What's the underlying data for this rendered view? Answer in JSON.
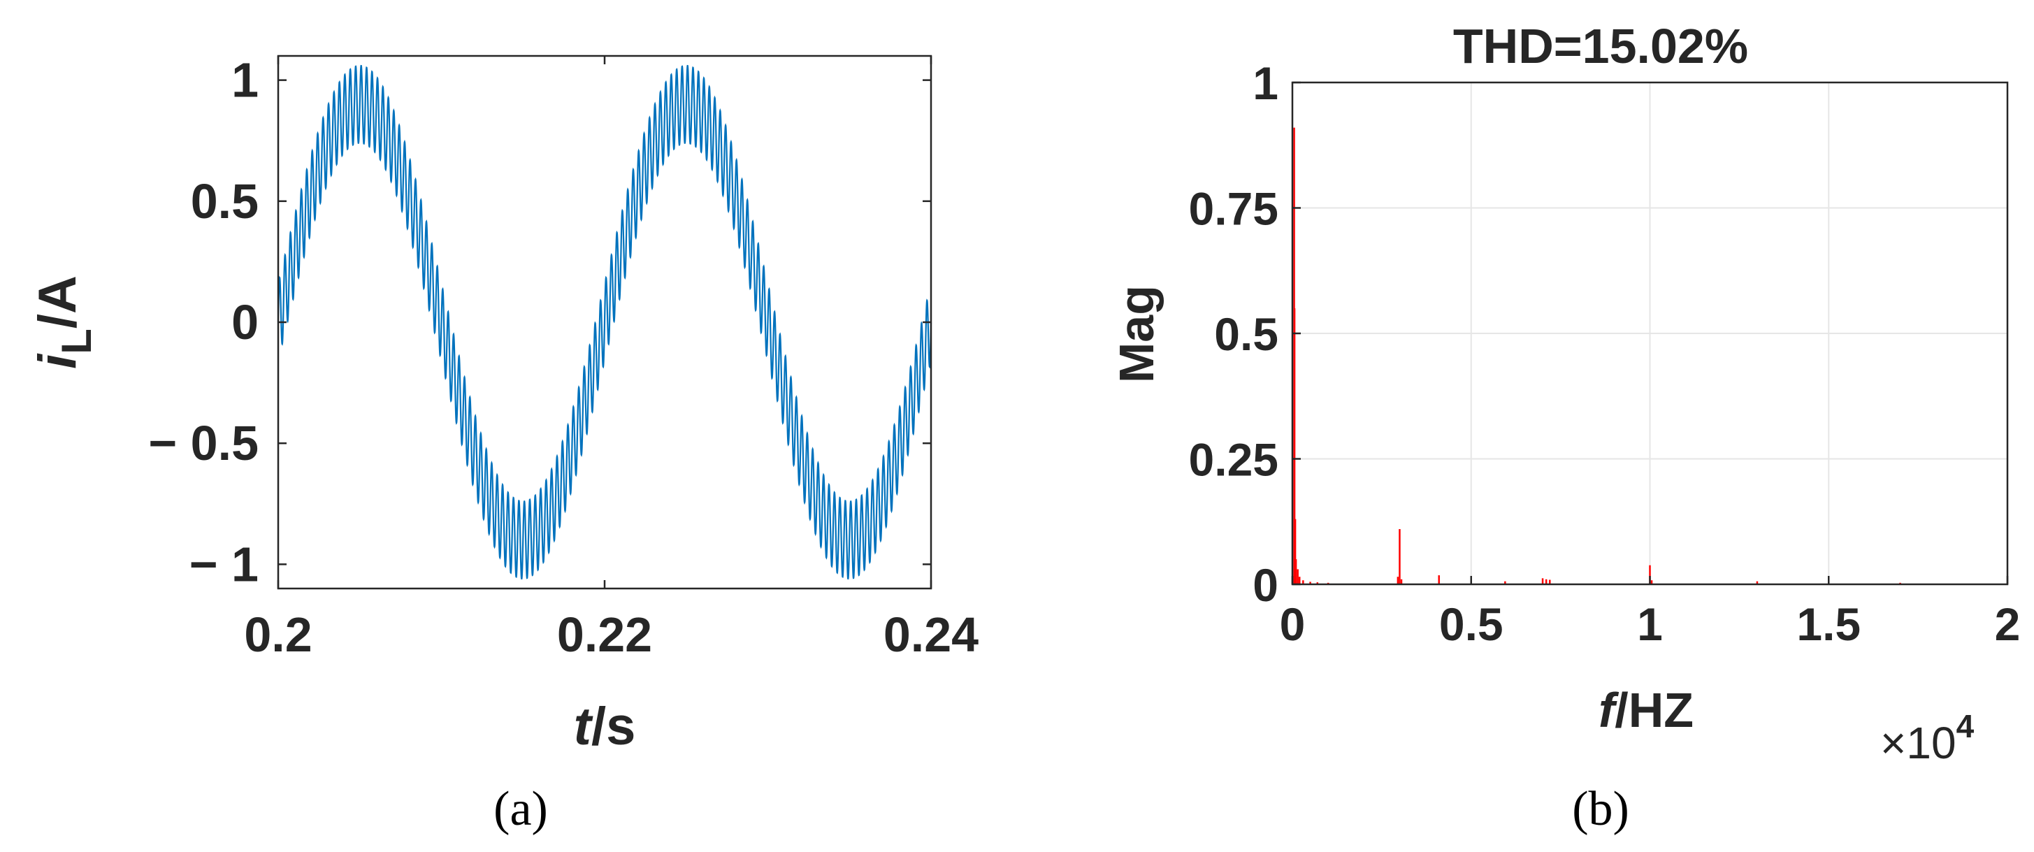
{
  "chart_data": [
    {
      "panel": "(a)",
      "type": "line",
      "title": "",
      "xlabel": {
        "italic": "t",
        "rest": "/s"
      },
      "ylabel": {
        "italic": "i",
        "subscript": "L",
        "rest": "/A"
      },
      "xlim": [
        0.2,
        0.24
      ],
      "ylim": [
        -1.1,
        1.1
      ],
      "xticks": [
        0.2,
        0.22,
        0.24
      ],
      "xtick_labels": [
        "0.2",
        "0.22",
        "0.24"
      ],
      "yticks": [
        -1,
        -0.5,
        0,
        0.5,
        1
      ],
      "ytick_labels": [
        "− 1",
        "− 0.5",
        "0",
        "0.5",
        "1"
      ],
      "grid": false,
      "series": [
        {
          "color": "#0072BD",
          "fundamental_hz": 50,
          "fundamental_amplitude": 0.9,
          "ripple_hz": 3000,
          "ripple_amplitude": 0.16,
          "phase_deg": 0,
          "t_start": 0.2,
          "t_end": 0.24
        }
      ]
    },
    {
      "panel": "(b)",
      "type": "bar",
      "title": "THD=15.02%",
      "xlabel": {
        "italic": "f",
        "rest": "/HZ"
      },
      "ylabel": {
        "text": "Mag"
      },
      "x_multiplier": "×10",
      "x_multiplier_exp": "4",
      "xlim": [
        0,
        20000
      ],
      "ylim": [
        0,
        1
      ],
      "xticks": [
        0,
        5000,
        10000,
        15000,
        20000
      ],
      "xtick_labels": [
        "0",
        "0.5",
        "1",
        "1.5",
        "2"
      ],
      "yticks": [
        0,
        0.25,
        0.5,
        0.75,
        1
      ],
      "ytick_labels": [
        "0",
        "0.25",
        "0.5",
        "0.75",
        "1"
      ],
      "grid": true,
      "series": [
        {
          "color": "#FF0000",
          "frequencies": [
            50,
            60,
            80,
            100,
            150,
            200,
            300,
            500,
            700,
            1000,
            2950,
            3000,
            3050,
            4100,
            5950,
            7000,
            7100,
            7200,
            10000,
            10050,
            13000,
            15000,
            17000
          ],
          "magnitudes": [
            0.91,
            0.55,
            0.13,
            0.05,
            0.03,
            0.015,
            0.008,
            0.005,
            0.004,
            0.003,
            0.015,
            0.11,
            0.01,
            0.018,
            0.006,
            0.012,
            0.01,
            0.009,
            0.038,
            0.008,
            0.006,
            0.004,
            0.003
          ]
        }
      ]
    }
  ]
}
